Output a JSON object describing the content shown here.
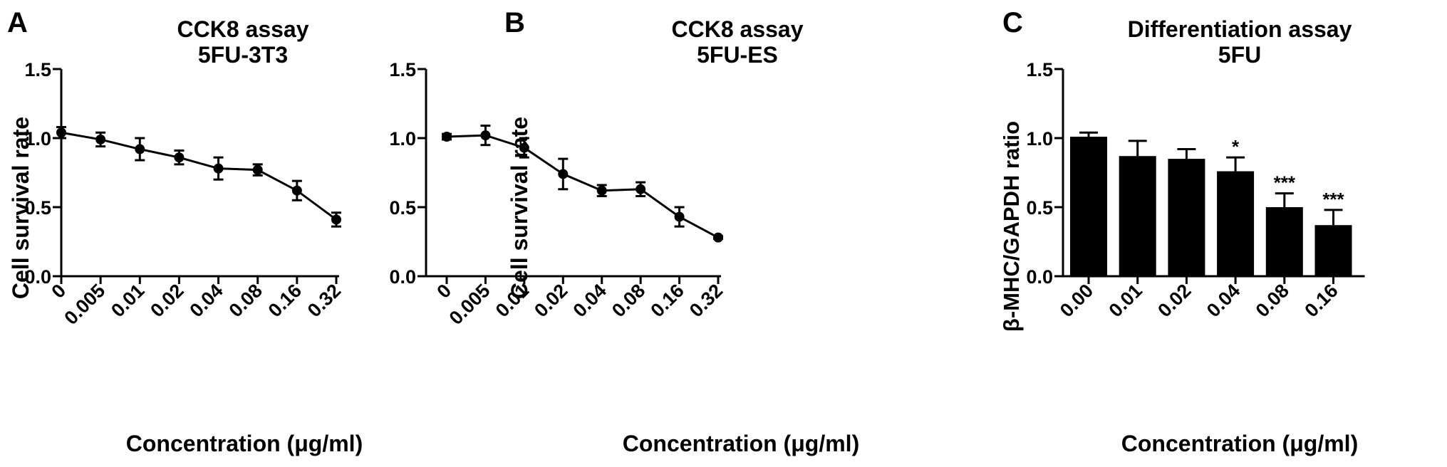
{
  "chart_data": [
    {
      "panel": "A",
      "type": "line",
      "title": "CCK8 assay",
      "subtitle": "5FU-3T3",
      "xlabel": "Concentration (μg/ml)",
      "ylabel": "Cell survival rate",
      "categories": [
        "0",
        "0.005",
        "0.01",
        "0.02",
        "0.04",
        "0.08",
        "0.16",
        "0.32"
      ],
      "values": [
        1.04,
        0.99,
        0.92,
        0.86,
        0.78,
        0.77,
        0.62,
        0.41
      ],
      "errors": [
        0.04,
        0.05,
        0.08,
        0.05,
        0.08,
        0.04,
        0.07,
        0.05
      ],
      "ylim": [
        0,
        1.5
      ],
      "yticks": [
        "0.0",
        "0.5",
        "1.0",
        "1.5"
      ],
      "grid": false
    },
    {
      "panel": "B",
      "type": "line",
      "title": "CCK8 assay",
      "subtitle": "5FU-ES",
      "xlabel": "Concentration (μg/ml)",
      "ylabel": "Cell survival rate",
      "categories": [
        "0",
        "0.005",
        "0.01",
        "0.02",
        "0.04",
        "0.08",
        "0.16",
        "0.32"
      ],
      "values": [
        1.01,
        1.02,
        0.93,
        0.74,
        0.62,
        0.63,
        0.43,
        0.28
      ],
      "errors": [
        0.02,
        0.07,
        0.07,
        0.11,
        0.04,
        0.05,
        0.07,
        0.01
      ],
      "ylim": [
        0,
        1.5
      ],
      "yticks": [
        "0.0",
        "0.5",
        "1.0",
        "1.5"
      ],
      "grid": false
    },
    {
      "panel": "C",
      "type": "bar",
      "title": "Differentiation assay",
      "subtitle": "5FU",
      "xlabel": "Concentration (μg/ml)",
      "ylabel": "β-MHC/GAPDH ratio",
      "categories": [
        "0.00",
        "0.01",
        "0.02",
        "0.04",
        "0.08",
        "0.16"
      ],
      "values": [
        1.01,
        0.87,
        0.85,
        0.76,
        0.5,
        0.37
      ],
      "errors": [
        0.03,
        0.11,
        0.07,
        0.1,
        0.1,
        0.11
      ],
      "annotations": [
        "",
        "",
        "",
        "*",
        "***",
        "***"
      ],
      "ylim": [
        0,
        1.5
      ],
      "yticks": [
        "0.0",
        "0.5",
        "1.0",
        "1.5"
      ],
      "grid": false
    }
  ]
}
